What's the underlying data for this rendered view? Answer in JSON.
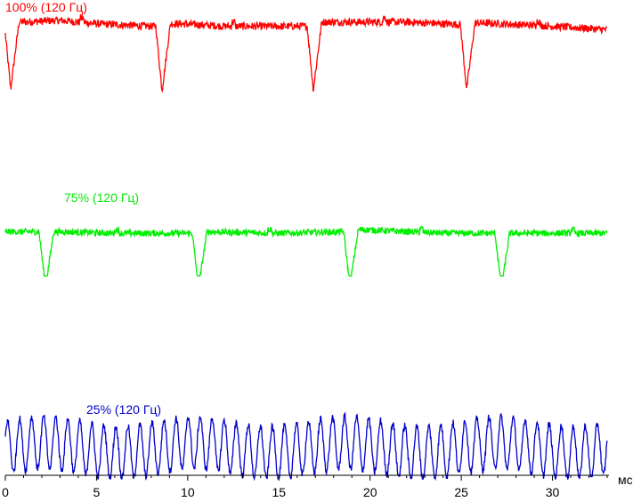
{
  "chart_data": {
    "type": "line",
    "xlabel": "мс",
    "xlim": [
      0,
      33
    ],
    "x_ticks": [
      0,
      5,
      10,
      15,
      20,
      25,
      30
    ],
    "grid": false,
    "legend": "none",
    "series": [
      {
        "name": "100% (120 Гц)",
        "color": "#ff0000",
        "frequency_hz": 120,
        "level_relative": 0.85,
        "dip_depth": 0.65,
        "dip_times_ms": [
          0.3,
          8.6,
          16.9,
          25.3
        ],
        "x": [
          0,
          0.3,
          1,
          3,
          5,
          8,
          8.6,
          9.5,
          12,
          16,
          16.9,
          18,
          22,
          25,
          25.3,
          26,
          30,
          33
        ],
        "y": [
          0.92,
          0.2,
          0.95,
          0.97,
          0.93,
          0.9,
          0.2,
          0.93,
          0.9,
          0.9,
          0.2,
          0.95,
          0.95,
          0.92,
          0.15,
          0.94,
          0.9,
          0.86
        ]
      },
      {
        "name": "75% (120 Гц)",
        "color": "#00ee00",
        "frequency_hz": 120,
        "level_relative": 0.6,
        "dip_depth": 0.45,
        "dip_times_ms": [
          2.2,
          10.6,
          18.9,
          27.2
        ],
        "x": [
          0,
          2.2,
          3,
          6,
          10,
          10.6,
          11,
          15,
          18.5,
          18.9,
          19.5,
          24,
          27.2,
          28,
          33
        ],
        "y": [
          0.62,
          0.15,
          0.62,
          0.6,
          0.6,
          0.1,
          0.62,
          0.6,
          0.62,
          0.15,
          0.65,
          0.6,
          0.15,
          0.6,
          0.6
        ]
      },
      {
        "name": "25% (120 Гц)",
        "color": "#0000cc",
        "frequency_hz": 120,
        "level_relative": 0.2,
        "ripple_period_ms": 0.66,
        "ripple_amplitude": 0.15,
        "x": [
          0,
          5,
          10,
          15,
          20,
          25,
          30,
          33
        ],
        "y": [
          0.2,
          0.2,
          0.2,
          0.2,
          0.2,
          0.2,
          0.2,
          0.2
        ]
      }
    ]
  }
}
